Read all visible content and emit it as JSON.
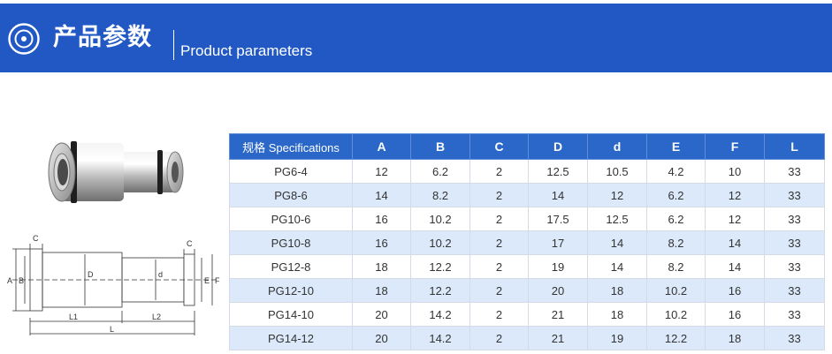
{
  "banner": {
    "title_zh": "产品参数",
    "title_en": "Product parameters",
    "color": "#2258c4",
    "icon": "target-circle-icon"
  },
  "product": {
    "photo_icon": "pneumatic-reducing-fitting-photo",
    "drawing_icon": "fitting-dimension-drawing"
  },
  "drawing": {
    "labels": [
      "C",
      "C",
      "A",
      "B",
      "D",
      "d",
      "E",
      "F",
      "L1",
      "L2",
      "L"
    ]
  },
  "table": {
    "header_color": "#2a67c9",
    "stripe_color": "#dbe9fa",
    "headers": [
      "规格 Specifications",
      "A",
      "B",
      "C",
      "D",
      "d",
      "E",
      "F",
      "L"
    ],
    "rows": [
      [
        "PG6-4",
        "12",
        "6.2",
        "2",
        "12.5",
        "10.5",
        "4.2",
        "10",
        "33"
      ],
      [
        "PG8-6",
        "14",
        "8.2",
        "2",
        "14",
        "12",
        "6.2",
        "12",
        "33"
      ],
      [
        "PG10-6",
        "16",
        "10.2",
        "2",
        "17.5",
        "12.5",
        "6.2",
        "12",
        "33"
      ],
      [
        "PG10-8",
        "16",
        "10.2",
        "2",
        "17",
        "14",
        "8.2",
        "14",
        "33"
      ],
      [
        "PG12-8",
        "18",
        "12.2",
        "2",
        "19",
        "14",
        "8.2",
        "14",
        "33"
      ],
      [
        "PG12-10",
        "18",
        "12.2",
        "2",
        "20",
        "18",
        "10.2",
        "16",
        "33"
      ],
      [
        "PG14-10",
        "20",
        "14.2",
        "2",
        "21",
        "18",
        "10.2",
        "16",
        "33"
      ],
      [
        "PG14-12",
        "20",
        "14.2",
        "2",
        "21",
        "19",
        "12.2",
        "18",
        "33"
      ]
    ]
  }
}
